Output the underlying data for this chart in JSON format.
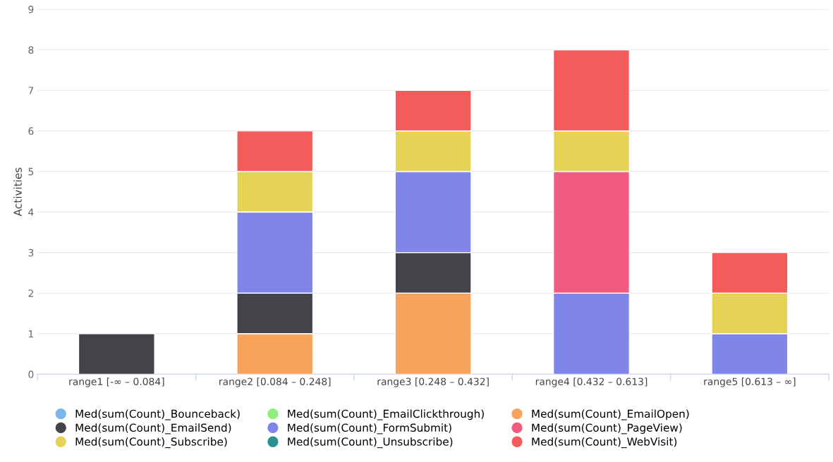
{
  "chart_data": {
    "type": "bar",
    "stacked": true,
    "ylabel": "Activities",
    "categories": [
      "range1 [-∞ – 0.084]",
      "range2 [0.084 – 0.248]",
      "range3 [0.248 – 0.432]",
      "range4 [0.432 – 0.613]",
      "range5 [0.613 – ∞]"
    ],
    "series": [
      {
        "name": "Med(sum(Count)_Bounceback)",
        "color": "#7cb5ec",
        "values": [
          null,
          null,
          null,
          null,
          null
        ]
      },
      {
        "name": "Med(sum(Count)_EmailClickthrough)",
        "color": "#90ed7d",
        "values": [
          null,
          null,
          null,
          null,
          null
        ]
      },
      {
        "name": "Med(sum(Count)_EmailOpen)",
        "color": "#f7a35c",
        "values": [
          null,
          1,
          2,
          null,
          null
        ]
      },
      {
        "name": "Med(sum(Count)_EmailSend)",
        "color": "#434348",
        "values": [
          1,
          1,
          1,
          null,
          null
        ]
      },
      {
        "name": "Med(sum(Count)_FormSubmit)",
        "color": "#8085e9",
        "values": [
          null,
          2,
          2,
          2,
          1
        ]
      },
      {
        "name": "Med(sum(Count)_PageView)",
        "color": "#f15c80",
        "values": [
          null,
          null,
          null,
          3,
          null
        ]
      },
      {
        "name": "Med(sum(Count)_Subscribe)",
        "color": "#e4d354",
        "values": [
          null,
          1,
          1,
          1,
          1
        ]
      },
      {
        "name": "Med(sum(Count)_Unsubscribe)",
        "color": "#2b908f",
        "values": [
          null,
          null,
          null,
          null,
          null
        ]
      },
      {
        "name": "Med(sum(Count)_WebVisit)",
        "color": "#f45b5b",
        "values": [
          null,
          1,
          1,
          2,
          1
        ]
      }
    ],
    "ylim": [
      0,
      9
    ],
    "yticks": [
      0,
      1,
      2,
      3,
      4,
      5,
      6,
      7,
      8,
      9
    ],
    "grid": "y",
    "legend": "bottom"
  }
}
